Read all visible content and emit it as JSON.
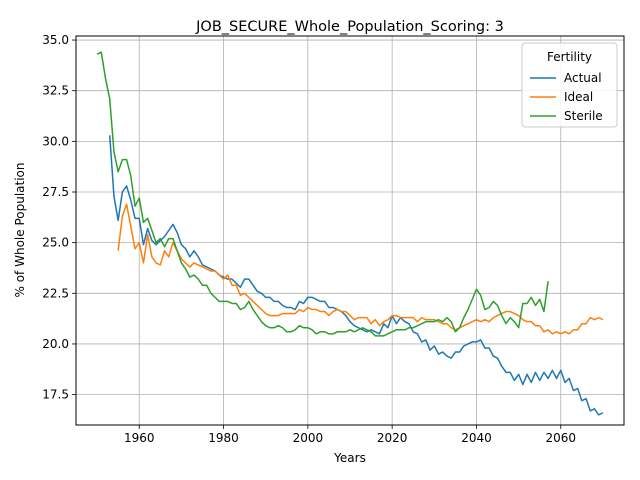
{
  "chart_data": {
    "type": "line",
    "title": "JOB_SECURE_Whole_Population_Scoring: 3",
    "xlabel": "Years",
    "ylabel": "% of Whole Population",
    "xlim": [
      1945,
      2075
    ],
    "ylim": [
      16.0,
      35.2
    ],
    "xticks": [
      1960,
      1980,
      2000,
      2020,
      2040,
      2060
    ],
    "yticks": [
      17.5,
      20.0,
      22.5,
      25.0,
      27.5,
      30.0,
      32.5,
      35.0
    ],
    "ytick_labels": [
      "17.5",
      "20.0",
      "22.5",
      "25.0",
      "27.5",
      "30.0",
      "32.5",
      "35.0"
    ],
    "grid": true,
    "legend": {
      "title": "Fertility",
      "placement": "top-right"
    },
    "series": [
      {
        "name": "Actual",
        "color": "#1f77b4",
        "x": [
          1953,
          1954,
          1955,
          1956,
          1957,
          1958,
          1959,
          1960,
          1961,
          1962,
          1963,
          1964,
          1965,
          1966,
          1967,
          1968,
          1969,
          1970,
          1971,
          1972,
          1973,
          1974,
          1975,
          1976,
          1977,
          1978,
          1979,
          1980,
          1981,
          1982,
          1983,
          1984,
          1985,
          1986,
          1987,
          1988,
          1989,
          1990,
          1991,
          1992,
          1993,
          1994,
          1995,
          1996,
          1997,
          1998,
          1999,
          2000,
          2001,
          2002,
          2003,
          2004,
          2005,
          2006,
          2007,
          2008,
          2009,
          2010,
          2011,
          2012,
          2013,
          2014,
          2015,
          2016,
          2017,
          2018,
          2019,
          2020,
          2021,
          2022,
          2023,
          2024,
          2025,
          2026,
          2027,
          2028,
          2029,
          2030,
          2031,
          2032,
          2033,
          2034,
          2035,
          2036,
          2037,
          2038,
          2039,
          2040,
          2041,
          2042,
          2043,
          2044,
          2045,
          2046,
          2047,
          2048,
          2049,
          2050,
          2051,
          2052,
          2053,
          2054,
          2055,
          2056,
          2057,
          2058,
          2059,
          2060,
          2061,
          2062,
          2063,
          2064,
          2065,
          2066,
          2067,
          2068,
          2069,
          2070
        ],
        "y": [
          30.3,
          27.3,
          26.1,
          27.5,
          27.8,
          27.1,
          26.2,
          26.2,
          24.9,
          25.7,
          25.1,
          24.9,
          25.1,
          25.3,
          25.6,
          25.9,
          25.5,
          24.9,
          24.7,
          24.3,
          24.6,
          24.3,
          23.9,
          23.8,
          23.7,
          23.6,
          23.4,
          23.3,
          23.2,
          23.2,
          23.0,
          22.8,
          23.2,
          23.2,
          22.9,
          22.6,
          22.5,
          22.3,
          22.3,
          22.1,
          22.1,
          21.9,
          21.8,
          21.8,
          21.7,
          22.1,
          22.0,
          22.3,
          22.3,
          22.2,
          22.1,
          22.1,
          21.8,
          21.8,
          21.7,
          21.6,
          21.4,
          21.1,
          20.9,
          20.8,
          20.7,
          20.6,
          20.7,
          20.6,
          20.5,
          21.0,
          20.8,
          21.4,
          21.0,
          21.3,
          21.1,
          21.0,
          20.6,
          20.5,
          20.1,
          20.2,
          19.7,
          19.9,
          19.5,
          19.6,
          19.4,
          19.3,
          19.6,
          19.6,
          19.9,
          20.0,
          20.1,
          20.1,
          20.2,
          19.8,
          19.8,
          19.4,
          19.3,
          18.9,
          18.6,
          18.6,
          18.2,
          18.5,
          18.0,
          18.5,
          18.1,
          18.6,
          18.2,
          18.6,
          18.3,
          18.7,
          18.3,
          18.7,
          18.1,
          18.3,
          17.7,
          17.8,
          17.2,
          17.3,
          16.7,
          16.8,
          16.5,
          16.6
        ]
      },
      {
        "name": "Ideal",
        "color": "#ff7f0e",
        "x": [
          1955,
          1956,
          1957,
          1958,
          1959,
          1960,
          1961,
          1962,
          1963,
          1964,
          1965,
          1966,
          1967,
          1968,
          1969,
          1970,
          1971,
          1972,
          1973,
          1974,
          1975,
          1976,
          1977,
          1978,
          1979,
          1980,
          1981,
          1982,
          1983,
          1984,
          1985,
          1986,
          1987,
          1988,
          1989,
          1990,
          1991,
          1992,
          1993,
          1994,
          1995,
          1996,
          1997,
          1998,
          1999,
          2000,
          2001,
          2002,
          2003,
          2004,
          2005,
          2006,
          2007,
          2008,
          2009,
          2010,
          2011,
          2012,
          2013,
          2014,
          2015,
          2016,
          2017,
          2018,
          2019,
          2020,
          2021,
          2022,
          2023,
          2024,
          2025,
          2026,
          2027,
          2028,
          2029,
          2030,
          2031,
          2032,
          2033,
          2034,
          2035,
          2036,
          2037,
          2038,
          2039,
          2040,
          2041,
          2042,
          2043,
          2044,
          2045,
          2046,
          2047,
          2048,
          2049,
          2050,
          2051,
          2052,
          2053,
          2054,
          2055,
          2056,
          2057,
          2058,
          2059,
          2060,
          2061,
          2062,
          2063,
          2064,
          2065,
          2066,
          2067,
          2068,
          2069,
          2070
        ],
        "y": [
          24.6,
          26.3,
          26.9,
          25.8,
          24.7,
          25.0,
          24.0,
          25.4,
          24.3,
          24.0,
          23.9,
          24.6,
          24.3,
          25.0,
          24.6,
          24.2,
          24.0,
          23.8,
          24.0,
          23.9,
          23.8,
          23.7,
          23.6,
          23.6,
          23.4,
          23.2,
          23.4,
          22.9,
          22.9,
          22.4,
          22.5,
          22.3,
          22.1,
          21.9,
          21.7,
          21.5,
          21.4,
          21.4,
          21.4,
          21.5,
          21.5,
          21.5,
          21.5,
          21.7,
          21.6,
          21.8,
          21.7,
          21.7,
          21.6,
          21.6,
          21.4,
          21.6,
          21.7,
          21.6,
          21.6,
          21.4,
          21.2,
          21.3,
          21.3,
          21.3,
          21.0,
          21.2,
          20.9,
          21.1,
          21.2,
          21.4,
          21.4,
          21.3,
          21.3,
          21.3,
          21.3,
          21.1,
          21.3,
          21.2,
          21.2,
          21.2,
          21.1,
          21.0,
          21.0,
          20.8,
          20.7,
          20.8,
          20.9,
          21.0,
          21.1,
          21.2,
          21.1,
          21.2,
          21.1,
          21.3,
          21.4,
          21.5,
          21.6,
          21.6,
          21.5,
          21.4,
          21.2,
          21.1,
          21.1,
          20.9,
          20.9,
          20.6,
          20.7,
          20.5,
          20.6,
          20.5,
          20.6,
          20.5,
          20.7,
          20.7,
          21.0,
          21.0,
          21.3,
          21.2,
          21.3,
          21.2
        ]
      },
      {
        "name": "Sterile",
        "color": "#2ca02c",
        "x": [
          1950,
          1951,
          1952,
          1953,
          1954,
          1955,
          1956,
          1957,
          1958,
          1959,
          1960,
          1961,
          1962,
          1963,
          1964,
          1965,
          1966,
          1967,
          1968,
          1969,
          1970,
          1971,
          1972,
          1973,
          1974,
          1975,
          1976,
          1977,
          1978,
          1979,
          1980,
          1981,
          1982,
          1983,
          1984,
          1985,
          1986,
          1987,
          1988,
          1989,
          1990,
          1991,
          1992,
          1993,
          1994,
          1995,
          1996,
          1997,
          1998,
          1999,
          2000,
          2001,
          2002,
          2003,
          2004,
          2005,
          2006,
          2007,
          2008,
          2009,
          2010,
          2011,
          2012,
          2013,
          2014,
          2015,
          2016,
          2017,
          2018,
          2019,
          2020,
          2021,
          2022,
          2023,
          2024,
          2025,
          2026,
          2027,
          2028,
          2029,
          2030,
          2031,
          2032,
          2033,
          2034,
          2035,
          2036,
          2037,
          2038,
          2039,
          2040,
          2041,
          2042,
          2043,
          2044,
          2045,
          2046,
          2047,
          2048,
          2049,
          2050,
          2051,
          2052,
          2053,
          2054,
          2055,
          2056,
          2057
        ],
        "y": [
          34.3,
          34.4,
          33.1,
          32.1,
          29.5,
          28.5,
          29.1,
          29.1,
          28.3,
          26.8,
          27.2,
          26.0,
          26.2,
          25.6,
          25.0,
          25.2,
          24.8,
          25.2,
          25.2,
          24.6,
          24.0,
          23.7,
          23.3,
          23.4,
          23.2,
          22.9,
          22.9,
          22.5,
          22.3,
          22.1,
          22.1,
          22.1,
          22.0,
          22.0,
          21.7,
          21.8,
          22.1,
          21.7,
          21.4,
          21.1,
          20.9,
          20.8,
          20.8,
          20.9,
          20.8,
          20.6,
          20.6,
          20.7,
          20.9,
          20.8,
          20.8,
          20.7,
          20.5,
          20.6,
          20.6,
          20.5,
          20.5,
          20.6,
          20.6,
          20.6,
          20.7,
          20.6,
          20.7,
          20.8,
          20.7,
          20.6,
          20.4,
          20.4,
          20.4,
          20.5,
          20.6,
          20.7,
          20.7,
          20.7,
          20.8,
          20.8,
          20.9,
          21.0,
          21.1,
          21.1,
          21.1,
          21.2,
          21.1,
          21.3,
          21.1,
          20.6,
          20.8,
          21.3,
          21.7,
          22.2,
          22.7,
          22.4,
          21.7,
          21.8,
          22.1,
          21.9,
          21.4,
          21.0,
          21.3,
          21.1,
          20.8,
          22.0,
          22.0,
          22.3,
          21.9,
          22.2,
          21.6,
          23.1
        ]
      }
    ]
  }
}
